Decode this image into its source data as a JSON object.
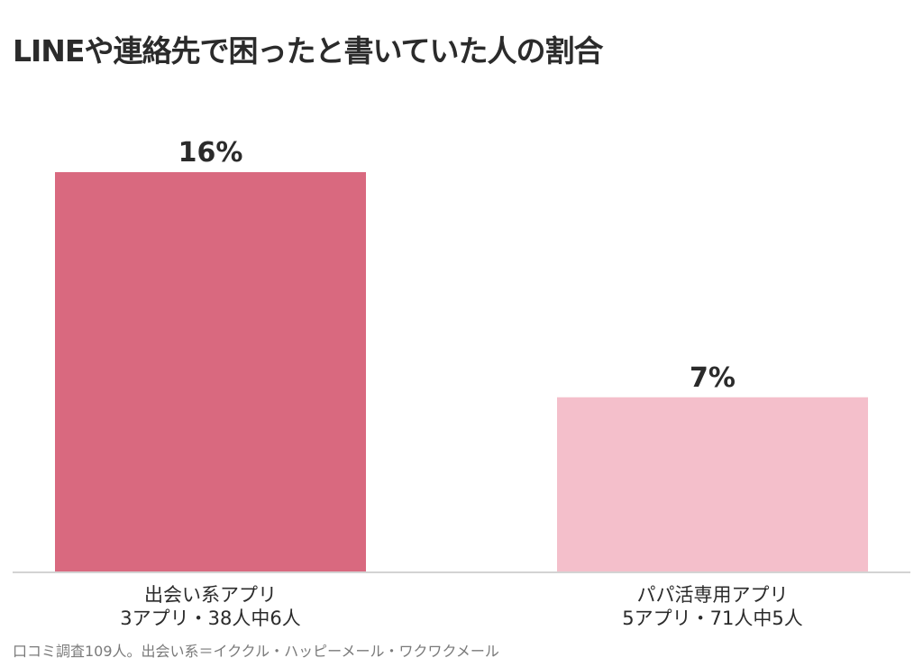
{
  "chart_data": {
    "type": "bar",
    "title": "LINEや連絡先で困ったと書いていた人の割合",
    "categories": [
      [
        "出会い系アプリ",
        "3アプリ・38人中6人"
      ],
      [
        "パパ活専用アプリ",
        "5アプリ・71人中5人"
      ]
    ],
    "values": [
      16,
      7
    ],
    "value_labels": [
      "16%",
      "7%"
    ],
    "unit": "%",
    "bar_colors": [
      "#d9697f",
      "#f4bfcb"
    ],
    "ylim": [
      0,
      16
    ],
    "grid": false,
    "legend": "none",
    "footnote": "口コミ調査109人。出会い系＝イククル・ハッピーメール・ワクワクメール"
  }
}
